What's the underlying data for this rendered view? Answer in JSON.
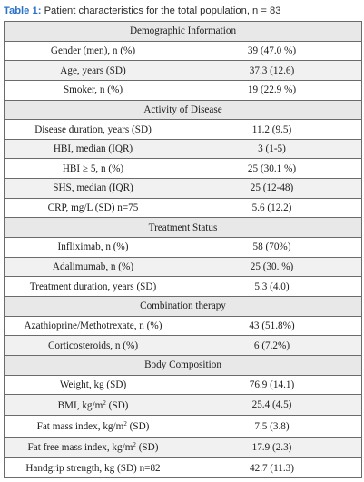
{
  "caption": {
    "label": "Table 1:",
    "text": "Patient characteristics for the total population, n = 83"
  },
  "table": {
    "rows": [
      {
        "type": "section",
        "label": "Demographic Information"
      },
      {
        "type": "data",
        "label": "Gender (men), n (%)",
        "value": "39 (47.0 %)"
      },
      {
        "type": "data",
        "label": "Age, years (SD)",
        "value": "37.3 (12.6)"
      },
      {
        "type": "data",
        "label": "Smoker, n (%)",
        "value": "19 (22.9 %)"
      },
      {
        "type": "section",
        "label": "Activity of Disease"
      },
      {
        "type": "data",
        "label": "Disease duration, years (SD)",
        "value": "11.2 (9.5)"
      },
      {
        "type": "data",
        "label": "HBI, median (IQR)",
        "value": "3 (1-5)"
      },
      {
        "type": "data",
        "label": "HBI ≥ 5, n (%)",
        "value": "25 (30.1 %)"
      },
      {
        "type": "data",
        "label": "SHS, median (IQR)",
        "value": "25 (12-48)"
      },
      {
        "type": "data",
        "label": "CRP, mg/L (SD) n=75",
        "value": "5.6 (12.2)"
      },
      {
        "type": "section",
        "label": "Treatment Status"
      },
      {
        "type": "data",
        "label": "Infliximab, n (%)",
        "value": "58 (70%)"
      },
      {
        "type": "data",
        "label": "Adalimumab, n (%)",
        "value": "25 (30. %)"
      },
      {
        "type": "data",
        "label": "Treatment duration, years (SD)",
        "value": "5.3 (4.0)"
      },
      {
        "type": "section",
        "label": "Combination therapy"
      },
      {
        "type": "data",
        "label": "Azathioprine/Methotrexate, n (%)",
        "value": "43 (51.8%)"
      },
      {
        "type": "data",
        "label": "Corticosteroids, n (%)",
        "value": "6 (7.2%)"
      },
      {
        "type": "section",
        "label": "Body Composition"
      },
      {
        "type": "data",
        "label": "Weight, kg (SD)",
        "value": "76.9 (14.1)"
      },
      {
        "type": "data",
        "label": "BMI, kg/m",
        "sup": "2",
        "suffix": " (SD)",
        "value": "25.4 (4.5)"
      },
      {
        "type": "data",
        "label": "Fat mass index, kg/m",
        "sup": "2",
        "suffix": " (SD)",
        "value": "7.5 (3.8)"
      },
      {
        "type": "data",
        "label": "Fat free mass index, kg/m",
        "sup": "2",
        "suffix": " (SD)",
        "value": "17.9 (2.3)"
      },
      {
        "type": "data",
        "label": "Handgrip strength, kg (SD) n=82",
        "value": "42.7 (11.3)"
      }
    ]
  }
}
